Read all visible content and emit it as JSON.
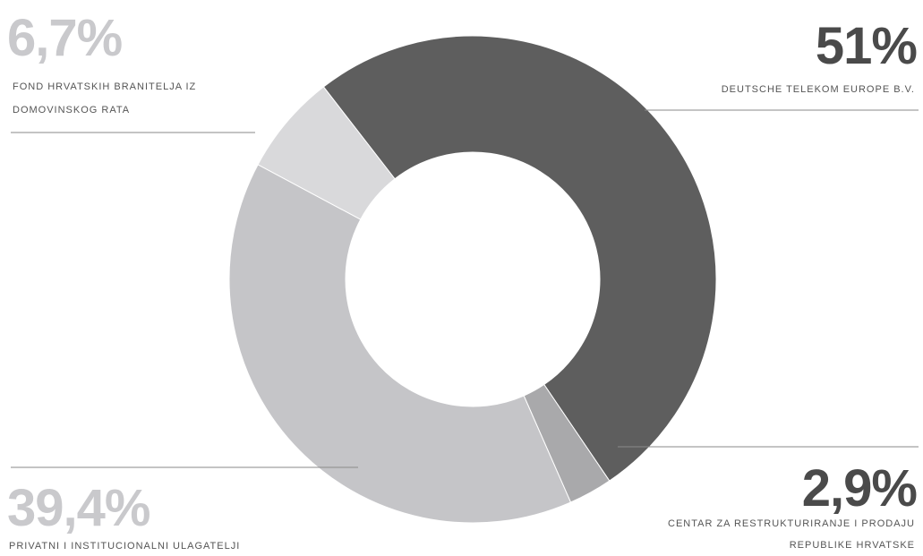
{
  "chart_data": {
    "type": "pie",
    "donut": true,
    "slices": [
      {
        "value": 51,
        "value_label": "51%",
        "label_lines": [
          "DEUTSCHE TELEKOM EUROPE B.V."
        ],
        "color": "#5e5e5e",
        "text_color": "#4a4a4a"
      },
      {
        "value": 2.9,
        "value_label": "2,9%",
        "label_lines": [
          "CENTAR ZA RESTRUKTURIRANJE I PRODAJU",
          "REPUBLIKE HRVATSKE"
        ],
        "color": "#a9a9ab",
        "text_color": "#4a4a4a"
      },
      {
        "value": 39.4,
        "value_label": "39,4%",
        "label_lines": [
          "PRIVATNI I INSTITUCIONALNI ULAGATELJI"
        ],
        "color": "#c5c5c8",
        "text_color": "#c9c9cc"
      },
      {
        "value": 6.7,
        "value_label": "6,7%",
        "label_lines": [
          "FOND HRVATSKIH BRANITELJA IZ",
          "DOMOVINSKOG RATA"
        ],
        "color": "#d9d9db",
        "text_color": "#c9c9cc"
      }
    ]
  }
}
